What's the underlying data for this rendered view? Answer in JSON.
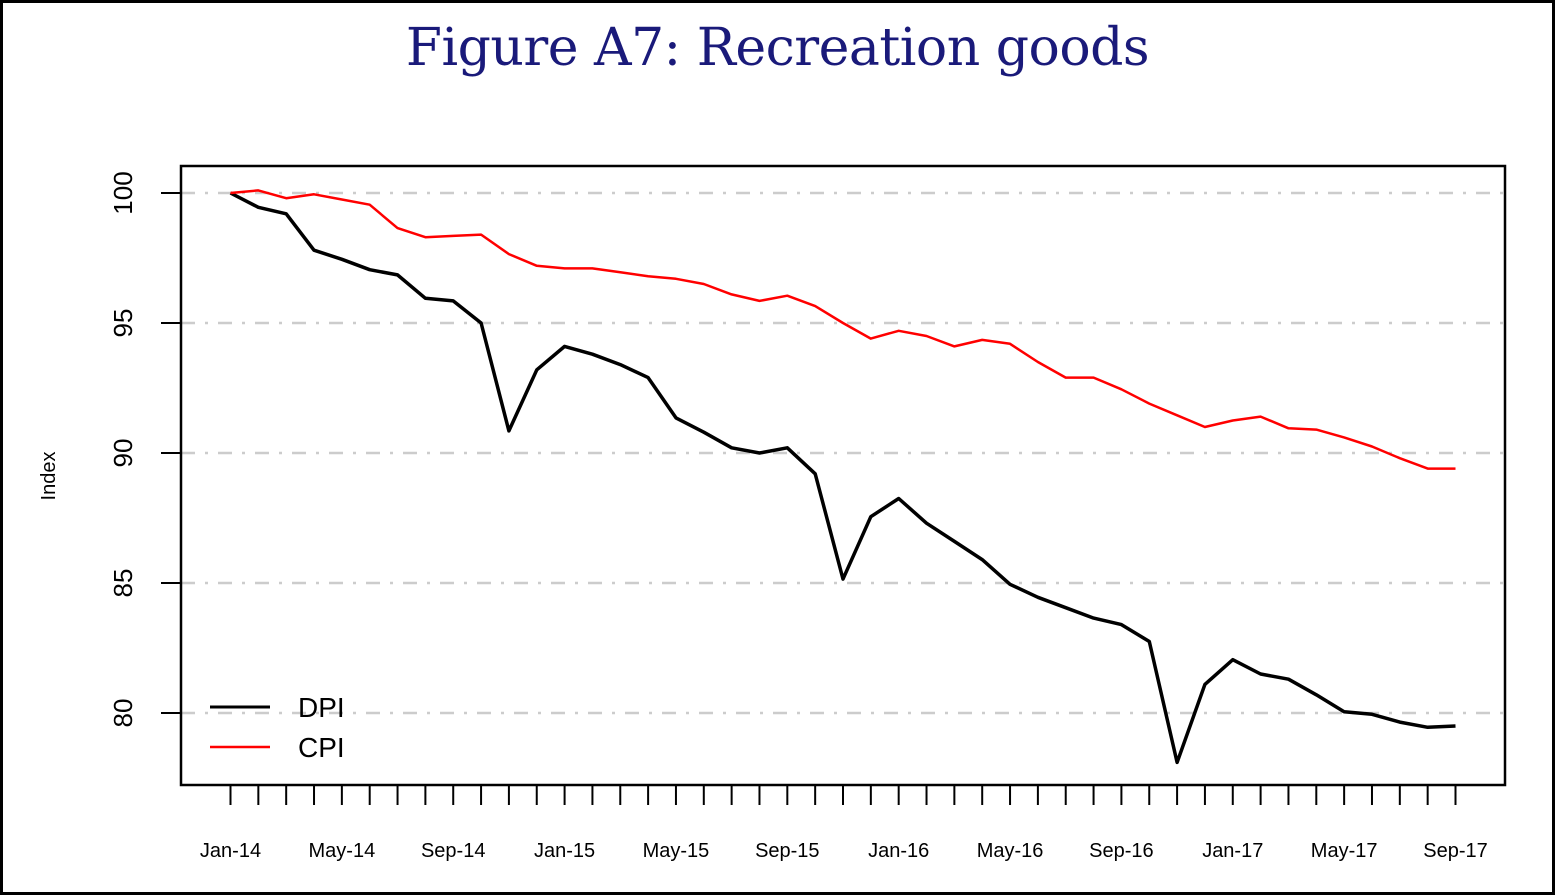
{
  "chart_data": {
    "type": "line",
    "title": "Figure A7: Recreation goods",
    "xlabel": "",
    "ylabel": "Index",
    "ylim": [
      77.4,
      101.0
    ],
    "yticks": [
      80,
      85,
      90,
      95,
      100
    ],
    "grid": "horizontal dash-dot at y ticks",
    "legend_position": "bottom-left",
    "x": [
      "Jan-14",
      "Feb-14",
      "Mar-14",
      "Apr-14",
      "May-14",
      "Jun-14",
      "Jul-14",
      "Aug-14",
      "Sep-14",
      "Oct-14",
      "Nov-14",
      "Dec-14",
      "Jan-15",
      "Feb-15",
      "Mar-15",
      "Apr-15",
      "May-15",
      "Jun-15",
      "Jul-15",
      "Aug-15",
      "Sep-15",
      "Oct-15",
      "Nov-15",
      "Dec-15",
      "Jan-16",
      "Feb-16",
      "Mar-16",
      "Apr-16",
      "May-16",
      "Jun-16",
      "Jul-16",
      "Aug-16",
      "Sep-16",
      "Oct-16",
      "Nov-16",
      "Dec-16",
      "Jan-17",
      "Feb-17",
      "Mar-17",
      "Apr-17",
      "May-17",
      "Jun-17",
      "Jul-17",
      "Aug-17",
      "Sep-17"
    ],
    "xtick_labels": [
      "Jan-14",
      "May-14",
      "Sep-14",
      "Jan-15",
      "May-15",
      "Sep-15",
      "Jan-16",
      "May-16",
      "Sep-16",
      "Jan-17",
      "May-17",
      "Sep-17"
    ],
    "series": [
      {
        "name": "DPI",
        "color": "#000000",
        "values": [
          100,
          99.45,
          99.2,
          97.8,
          97.45,
          97.05,
          96.85,
          95.95,
          95.85,
          95.0,
          90.85,
          93.2,
          94.1,
          93.8,
          93.4,
          92.9,
          91.35,
          90.8,
          90.2,
          90.0,
          90.2,
          89.2,
          85.15,
          87.55,
          88.25,
          87.3,
          86.6,
          85.9,
          84.95,
          84.45,
          84.05,
          83.65,
          83.4,
          82.75,
          78.1,
          81.1,
          82.05,
          81.5,
          81.3,
          80.7,
          80.05,
          79.95,
          79.65,
          79.45,
          79.5
        ]
      },
      {
        "name": "CPI",
        "color": "#ff0000",
        "values": [
          100,
          100.1,
          99.8,
          99.95,
          99.75,
          99.55,
          98.65,
          98.3,
          98.35,
          98.4,
          97.65,
          97.2,
          97.1,
          97.1,
          96.95,
          96.8,
          96.7,
          96.5,
          96.1,
          95.85,
          96.05,
          95.65,
          95.0,
          94.4,
          94.7,
          94.5,
          94.1,
          94.35,
          94.2,
          93.5,
          92.9,
          92.9,
          92.45,
          91.9,
          91.45,
          91.0,
          91.25,
          91.4,
          90.95,
          90.9,
          90.6,
          90.25,
          89.8,
          89.4,
          89.4
        ]
      }
    ]
  },
  "colors": {
    "title": "#1a1a7a",
    "grid": "#cccccc",
    "axis": "#000000"
  }
}
